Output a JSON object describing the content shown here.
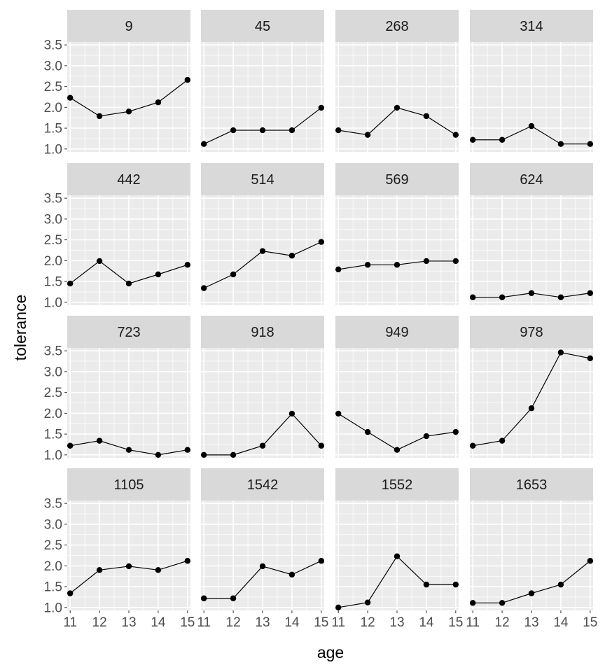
{
  "chart_data": {
    "type": "line",
    "xlabel": "age",
    "ylabel": "tolerance",
    "x": [
      11,
      12,
      13,
      14,
      15
    ],
    "xlim": [
      10.9,
      15.1
    ],
    "ylim": [
      0.93,
      3.57
    ],
    "x_ticks": [
      11,
      12,
      13,
      14,
      15
    ],
    "y_ticks": [
      1.0,
      1.5,
      2.0,
      2.5,
      3.0,
      3.5
    ],
    "y_tick_labels": [
      "1.0",
      "1.5",
      "2.0",
      "2.5",
      "3.0",
      "3.5"
    ],
    "grid": true,
    "legend": "none",
    "panel_background": "#ebebeb",
    "strip_background": "#d9d9d9",
    "line_color": "#000000",
    "point_color": "#000000",
    "panels": [
      {
        "id": "9",
        "values": [
          2.23,
          1.79,
          1.9,
          2.12,
          2.66
        ]
      },
      {
        "id": "45",
        "values": [
          1.12,
          1.45,
          1.45,
          1.45,
          1.99
        ]
      },
      {
        "id": "268",
        "values": [
          1.45,
          1.34,
          1.99,
          1.79,
          1.34
        ]
      },
      {
        "id": "314",
        "values": [
          1.22,
          1.22,
          1.55,
          1.12,
          1.12
        ]
      },
      {
        "id": "442",
        "values": [
          1.45,
          1.99,
          1.45,
          1.67,
          1.9
        ]
      },
      {
        "id": "514",
        "values": [
          1.34,
          1.67,
          2.23,
          2.12,
          2.45
        ]
      },
      {
        "id": "569",
        "values": [
          1.79,
          1.9,
          1.9,
          1.99,
          1.99
        ]
      },
      {
        "id": "624",
        "values": [
          1.12,
          1.12,
          1.22,
          1.12,
          1.22
        ]
      },
      {
        "id": "723",
        "values": [
          1.22,
          1.34,
          1.12,
          1.0,
          1.12
        ]
      },
      {
        "id": "918",
        "values": [
          1.0,
          1.0,
          1.22,
          1.99,
          1.22
        ]
      },
      {
        "id": "949",
        "values": [
          1.99,
          1.55,
          1.12,
          1.45,
          1.55
        ]
      },
      {
        "id": "978",
        "values": [
          1.22,
          1.34,
          2.12,
          3.46,
          3.32
        ]
      },
      {
        "id": "1105",
        "values": [
          1.34,
          1.9,
          1.99,
          1.9,
          2.12
        ]
      },
      {
        "id": "1542",
        "values": [
          1.22,
          1.22,
          1.99,
          1.79,
          2.12
        ]
      },
      {
        "id": "1552",
        "values": [
          1.0,
          1.12,
          2.23,
          1.55,
          1.55
        ]
      },
      {
        "id": "1653",
        "values": [
          1.11,
          1.11,
          1.34,
          1.55,
          2.12
        ]
      }
    ]
  }
}
